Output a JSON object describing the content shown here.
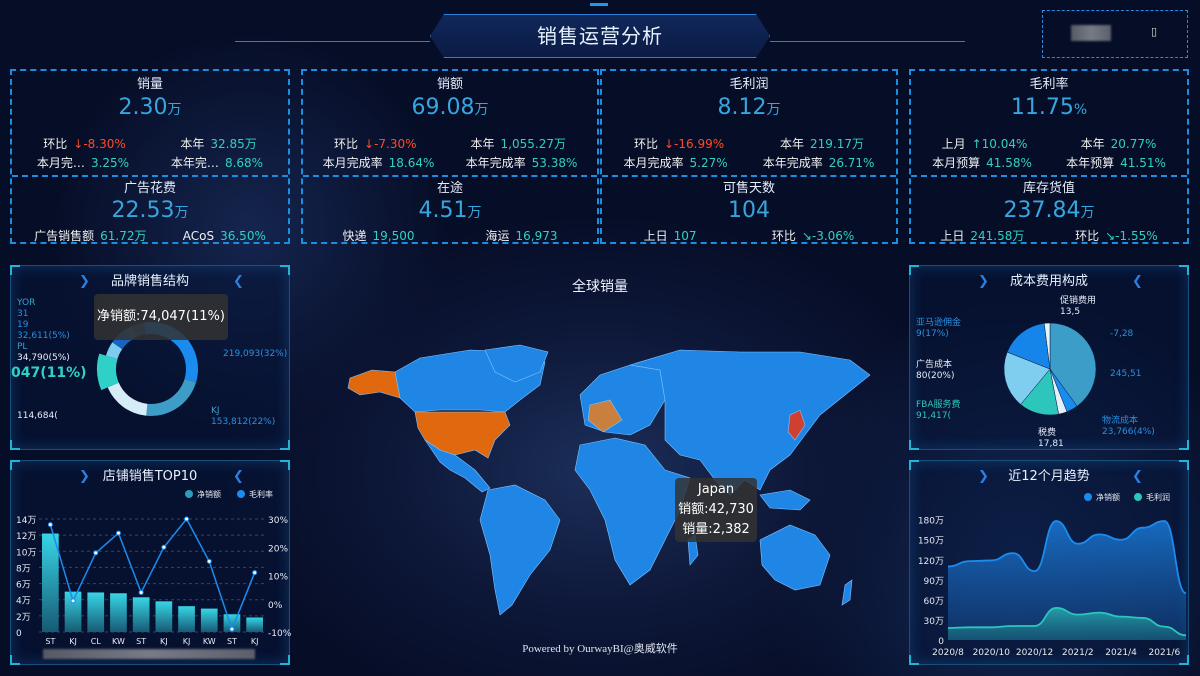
{
  "header": {
    "title": "销售运营分析",
    "date_icon": "calendar-icon"
  },
  "kpis": [
    {
      "top": {
        "title": "销量",
        "value": "2.30",
        "unit": "万",
        "rows": [
          [
            {
              "l": "环比"
            },
            {
              "v": "-8.30%",
              "trend": "down"
            },
            {
              "l": "本年"
            },
            {
              "v": "32.85万"
            }
          ],
          [
            {
              "l": "本月完…"
            },
            {
              "v": "3.25%"
            },
            {
              "l": "本年完…"
            },
            {
              "v": "8.68%"
            }
          ]
        ]
      },
      "bottom": {
        "title": "广告花费",
        "value": "22.53",
        "unit": "万",
        "rows": [
          [
            {
              "l": "广告销售额"
            },
            {
              "v": "61.72万"
            },
            {
              "l": "ACoS"
            },
            {
              "v": "36.50%"
            }
          ]
        ]
      }
    },
    {
      "top": {
        "title": "销额",
        "value": "69.08",
        "unit": "万",
        "rows": [
          [
            {
              "l": "环比"
            },
            {
              "v": "-7.30%",
              "trend": "down"
            },
            {
              "l": "本年"
            },
            {
              "v": "1,055.27万"
            }
          ],
          [
            {
              "l": "本月完成率"
            },
            {
              "v": "18.64%"
            },
            {
              "l": "本年完成率"
            },
            {
              "v": "53.38%"
            }
          ]
        ]
      },
      "bottom": {
        "title": "在途",
        "value": "4.51",
        "unit": "万",
        "rows": [
          [
            {
              "l": "快递"
            },
            {
              "v": "19,500"
            },
            {
              "l": "海运"
            },
            {
              "v": "16,973"
            }
          ]
        ]
      }
    },
    {
      "top": {
        "title": "毛利润",
        "value": "8.12",
        "unit": "万",
        "rows": [
          [
            {
              "l": "环比"
            },
            {
              "v": "-16.99%",
              "trend": "down"
            },
            {
              "l": "本年"
            },
            {
              "v": "219.17万"
            }
          ],
          [
            {
              "l": "本月完成率"
            },
            {
              "v": "5.27%"
            },
            {
              "l": "本年完成率"
            },
            {
              "v": "26.71%"
            }
          ]
        ]
      },
      "bottom": {
        "title": "可售天数",
        "value": "104",
        "unit": "",
        "rows": [
          [
            {
              "l": "上日"
            },
            {
              "v": "107"
            },
            {
              "l": "环比"
            },
            {
              "v": "-3.06%",
              "trend": "down-good"
            }
          ]
        ]
      }
    },
    {
      "top": {
        "title": "毛利率",
        "value": "11.75",
        "unit": "%",
        "rows": [
          [
            {
              "l": "上月"
            },
            {
              "v": "10.04%",
              "trend": "up"
            },
            {
              "l": "本年"
            },
            {
              "v": "20.77%"
            }
          ],
          [
            {
              "l": "本月预算"
            },
            {
              "v": "41.58%"
            },
            {
              "l": "本年预算"
            },
            {
              "v": "41.51%"
            }
          ]
        ]
      },
      "bottom": {
        "title": "库存货值",
        "value": "237.84",
        "unit": "万",
        "rows": [
          [
            {
              "l": "上日"
            },
            {
              "v": "241.58万"
            },
            {
              "l": "环比"
            },
            {
              "v": "-1.55%",
              "trend": "down-good"
            }
          ]
        ]
      }
    }
  ],
  "brand": {
    "title": "品牌销售结构",
    "tooltip": "净销额:74,047(11%)",
    "highlight_label": "047(11%)",
    "chart_data": {
      "type": "pie",
      "donut": true,
      "slices": [
        {
          "name": "",
          "value": 219093,
          "pct": 32,
          "label": "219,093(32%)",
          "color": "#1a8cf0"
        },
        {
          "name": "KJ",
          "value": 153812,
          "pct": 22,
          "label": "153,812(22%)",
          "color": "#3d9dc6"
        },
        {
          "name": "",
          "value": 114684,
          "pct": 17,
          "label": "114,684(",
          "color": "#d6ecf6"
        },
        {
          "name": "",
          "value": 74047,
          "pct": 11,
          "label": "",
          "color": "#2fd1c6"
        },
        {
          "name": "PL",
          "value": 34790,
          "pct": 5,
          "label": "34,790(5%)",
          "color": "#7ecbef"
        },
        {
          "name": "",
          "value": 32611,
          "pct": 5,
          "label": "32,611(5%)",
          "color": "#1565c0"
        },
        {
          "name": "YOR",
          "value": null,
          "pct": 4,
          "label": "31",
          "color": "#2b6fa3"
        },
        {
          "name": "",
          "value": null,
          "pct": 4,
          "label": "19",
          "color": "#23507e"
        }
      ]
    }
  },
  "cost": {
    "title": "成本费用构成",
    "chart_data": {
      "type": "pie",
      "slices": [
        {
          "name": "",
          "label": "245,51",
          "pct": 40,
          "color": "#3c9ec8"
        },
        {
          "name": "物流成本",
          "label": "23,766(4%)",
          "pct": 4,
          "color": "#1a8cf0"
        },
        {
          "name": "税费",
          "label": "17,81",
          "pct": 3,
          "color": "#e4f1f8"
        },
        {
          "name": "FBA服务费",
          "label": "91,417(",
          "pct": 14,
          "color": "#2cc6bc"
        },
        {
          "name": "广告成本",
          "label": "80(20%)",
          "pct": 20,
          "color": "#7fcdef"
        },
        {
          "name": "亚马逊佣金",
          "label": "9(17%)",
          "pct": 17,
          "color": "#1685ea"
        },
        {
          "name": "促销费用",
          "label": "13,5",
          "pct": 2,
          "color": "#e8f3fa"
        }
      ],
      "extra_labels": [
        "-7,28"
      ]
    }
  },
  "top10": {
    "title": "店铺销售TOP10",
    "legend": [
      "净销额",
      "毛利率"
    ],
    "chart_data": {
      "type": "bar",
      "categories": [
        "ST",
        "KJ",
        "CL",
        "KW",
        "ST",
        "KJ",
        "KJ",
        "KW",
        "ST",
        "KJ"
      ],
      "series": [
        {
          "name": "净销额",
          "values": [
            12.2,
            5.0,
            4.9,
            4.8,
            4.3,
            3.8,
            3.2,
            2.9,
            2.2,
            1.8
          ],
          "unit": "万"
        },
        {
          "name": "毛利率",
          "type": "line",
          "values": [
            28,
            1,
            18,
            25,
            4,
            20,
            30,
            15,
            -9,
            11
          ],
          "unit": "%"
        }
      ],
      "yticks_left": [
        "0",
        "2万",
        "4万",
        "6万",
        "8万",
        "10万",
        "12万",
        "14万"
      ],
      "ylim_left": [
        0,
        14
      ],
      "yticks_right": [
        "-10%",
        "0%",
        "10%",
        "20%",
        "30%"
      ],
      "ylim_right": [
        -10,
        30
      ]
    }
  },
  "map": {
    "title": "全球销量",
    "tooltip": {
      "country": "Japan",
      "sales": "销额:42,730",
      "qty": "销量:2,382"
    },
    "footer": "Powered by OurwayBI@奥威软件",
    "colors": {
      "land": "#1f86e6",
      "highlight": "#e0690f"
    }
  },
  "trend": {
    "title": "近12个月趋势",
    "legend": [
      "净销额",
      "毛利润"
    ],
    "chart_data": {
      "type": "area",
      "x": [
        "2020/8",
        "2020/9",
        "2020/10",
        "2020/11",
        "2020/12",
        "2021/1",
        "2021/2",
        "2021/3",
        "2021/4",
        "2021/5",
        "2021/6",
        "2021/7"
      ],
      "xticks": [
        "2020/8",
        "2020/10",
        "2020/12",
        "2021/2",
        "2021/4",
        "2021/6"
      ],
      "series": [
        {
          "name": "净销额",
          "values": [
            110,
            118,
            119,
            130,
            103,
            178,
            144,
            158,
            150,
            168,
            178,
            70
          ],
          "color": "#1a8cf0"
        },
        {
          "name": "毛利润",
          "values": [
            18,
            19,
            19,
            21,
            21,
            48,
            38,
            41,
            35,
            33,
            20,
            7
          ],
          "color": "#2cc6bc"
        }
      ],
      "yticks": [
        "0",
        "30万",
        "60万",
        "90万",
        "120万",
        "150万",
        "180万"
      ],
      "ylim": [
        0,
        190
      ],
      "unit": "万"
    }
  },
  "watermark": "奥威软件"
}
